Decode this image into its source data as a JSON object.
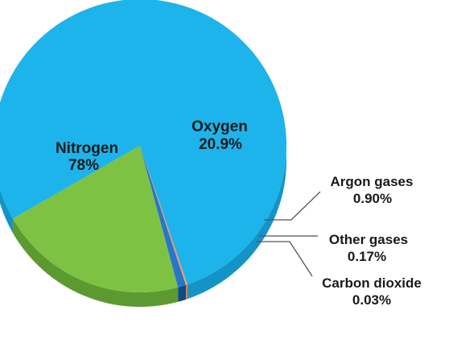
{
  "chart_data": {
    "type": "pie",
    "style": "3d",
    "title": "",
    "slices": [
      {
        "name": "Nitrogen",
        "value": 78,
        "value_label": "78%",
        "color": "#1DB4EC",
        "side_color": "#1494C6"
      },
      {
        "name": "Oxygen",
        "value": 20.9,
        "value_label": "20.9%",
        "color": "#7DC243",
        "side_color": "#5C9A31"
      },
      {
        "name": "Argon gases",
        "value": 0.9,
        "value_label": "0.90%",
        "color": "#2876C9",
        "side_color": "#0F4A86"
      },
      {
        "name": "Other gases",
        "value": 0.17,
        "value_label": "0.17%",
        "color": "#F6A85A",
        "side_color": "#E07D1E"
      },
      {
        "name": "Carbon dioxide",
        "value": 0.03,
        "value_label": "0.03%",
        "color": "#C8266A",
        "side_color": "#9A1B50"
      }
    ],
    "legend": "none"
  }
}
